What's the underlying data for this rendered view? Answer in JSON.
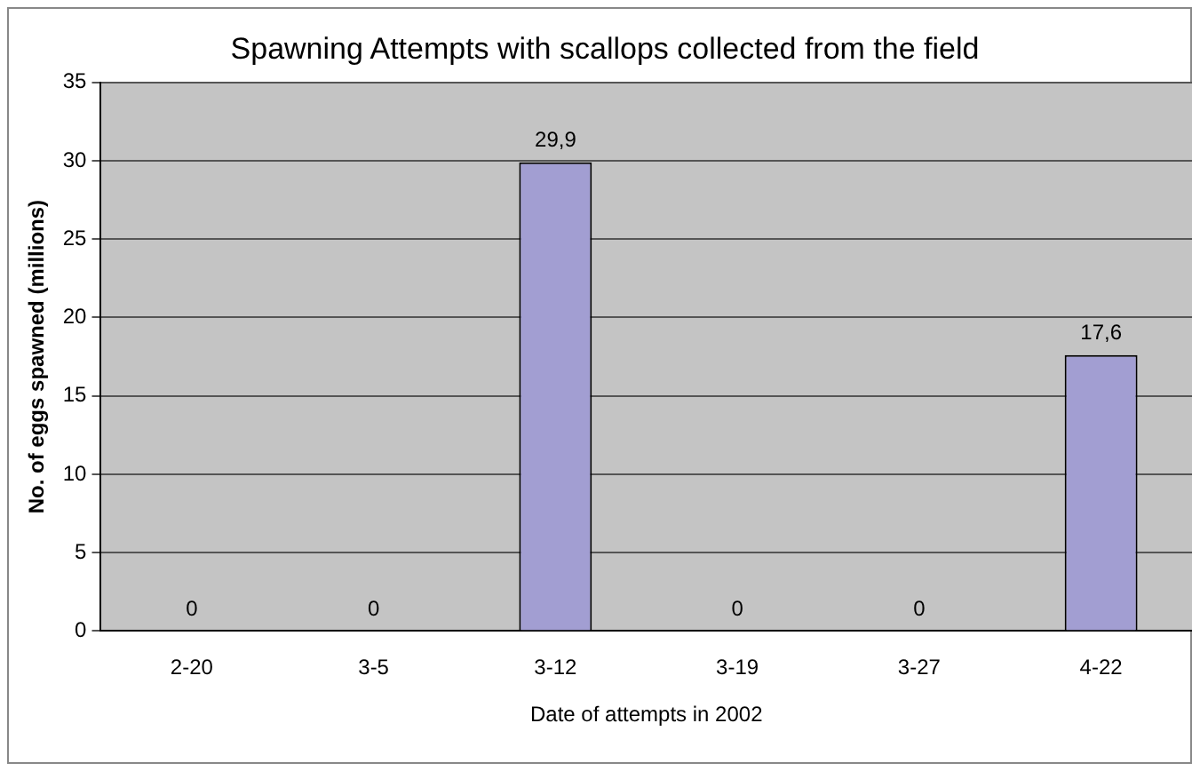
{
  "chart_data": {
    "type": "bar",
    "title": "Spawning Attempts with scallops collected from the field",
    "xlabel": "Date of attempts in 2002",
    "ylabel": "No. of eggs spawned (millions)",
    "categories": [
      "2-20",
      "3-5",
      "3-12",
      "3-19",
      "3-27",
      "4-22"
    ],
    "values": [
      0,
      0,
      29.9,
      0,
      0,
      17.6
    ],
    "value_labels": [
      "0",
      "0",
      "29,9",
      "0",
      "0",
      "17,6"
    ],
    "color": "#a29ed2",
    "ylim": [
      0,
      35
    ],
    "yticks": [
      0,
      5,
      10,
      15,
      20,
      25,
      30,
      35
    ],
    "grid": "y"
  }
}
